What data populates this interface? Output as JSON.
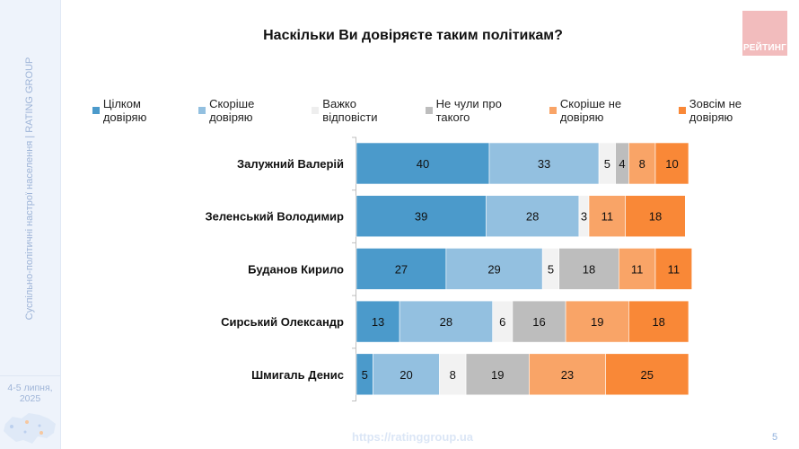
{
  "sidebar": {
    "vertical_text": "Суспільно-політичні настрої населення |  RATING GROUP",
    "date": "4-5 липня, 2025",
    "date_line1": "4-5 липня,",
    "date_line2": "2025"
  },
  "logo": {
    "text": "РЕЙТИНГ",
    "color": "#f2bcbd"
  },
  "footer": {
    "url": "https://ratinggroup.ua",
    "page_number": "5"
  },
  "chart_data": {
    "type": "bar",
    "orientation": "horizontal",
    "stacked": true,
    "title": "Наскільки Ви довіряєте таким політикам?",
    "xlabel": "",
    "ylabel": "",
    "xlim": [
      0,
      100
    ],
    "grid": false,
    "legend_position": "top",
    "categories": [
      "Залужний Валерій",
      "Зеленський Володимир",
      "Буданов Кирило",
      "Сирський Олександр",
      "Шмигаль Денис"
    ],
    "series": [
      {
        "name": "Цілком довіряю",
        "color": "#4b9acb",
        "values": [
          40,
          39,
          27,
          13,
          5
        ]
      },
      {
        "name": "Скоріше довіряю",
        "color": "#93c0e0",
        "values": [
          33,
          28,
          29,
          28,
          20
        ]
      },
      {
        "name": "Важко відповісти",
        "color": "#f2f2f2",
        "values": [
          5,
          3,
          5,
          6,
          8
        ]
      },
      {
        "name": "Не чули про такого",
        "color": "#bdbdbd",
        "values": [
          4,
          0,
          18,
          16,
          19
        ]
      },
      {
        "name": "Скоріше не довіряю",
        "color": "#f9a467",
        "values": [
          8,
          11,
          11,
          19,
          23
        ]
      },
      {
        "name": "Зовсім не довіряю",
        "color": "#f98837",
        "values": [
          10,
          18,
          11,
          18,
          25
        ]
      }
    ]
  }
}
